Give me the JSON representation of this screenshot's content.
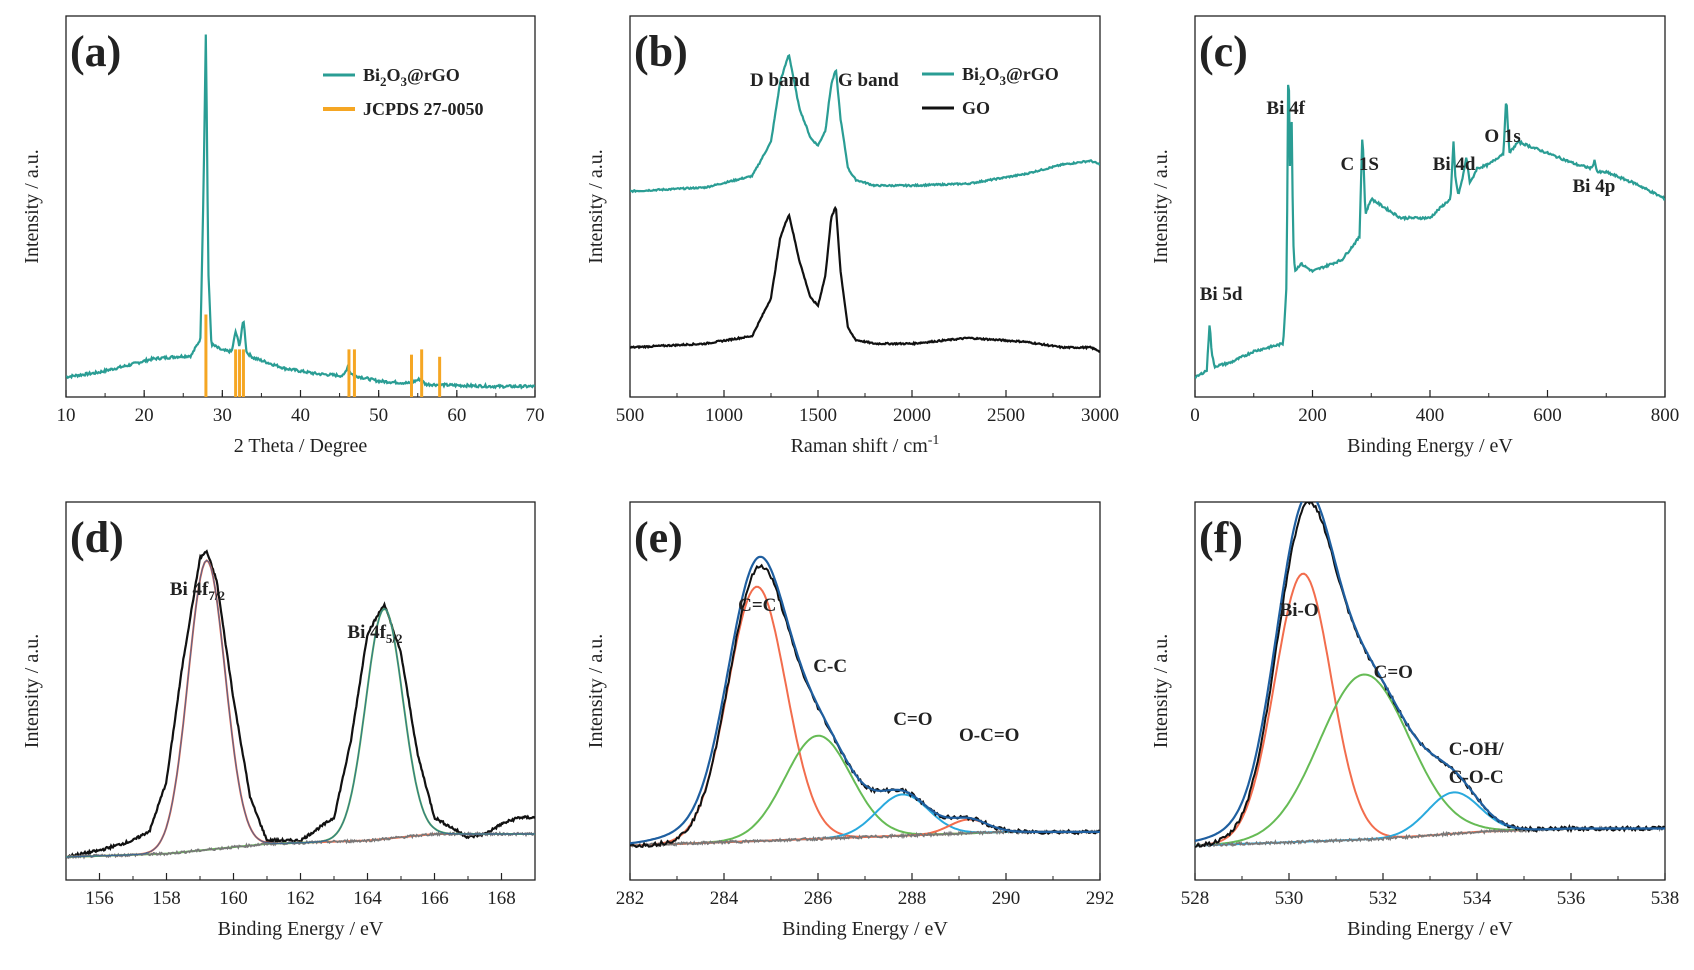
{
  "figure": "six-panel characterization figure",
  "colors": {
    "teal": "#2a9d94",
    "black": "#111111",
    "orange": "#f5a623",
    "red_fit": "#f26d4d",
    "green_fit": "#66bb55",
    "cyan_fit": "#29a9dd",
    "envelope": "#1f5fa0",
    "background_line": "#777777"
  },
  "chart_data": [
    {
      "id": "a",
      "panel_label": "(a)",
      "type": "line",
      "xlabel": "2 Theta / Degree",
      "ylabel": "Intensity / a.u.",
      "xlim": [
        10,
        70
      ],
      "xticks": [
        "10",
        "20",
        "30",
        "40",
        "50",
        "60",
        "70"
      ],
      "legend": [
        {
          "label": "Bi2O3@rGO",
          "color": "#2a9d94",
          "kind": "line"
        },
        {
          "label": "JCPDS 27-0050",
          "color": "#f5a623",
          "kind": "bar"
        }
      ],
      "series": [
        {
          "name": "Bi2O3@rGO",
          "color": "#2a9d94",
          "x": [
            10,
            14,
            18,
            21,
            24,
            26,
            27.2,
            27.6,
            27.9,
            28.2,
            28.6,
            30,
            31.2,
            31.7,
            32.2,
            32.7,
            33.1,
            34,
            38,
            42,
            45.5,
            46,
            46.5,
            47,
            50,
            54,
            55.3,
            56,
            60,
            65,
            70
          ],
          "y": [
            0.19,
            0.23,
            0.3,
            0.36,
            0.38,
            0.39,
            0.55,
            2.0,
            3.5,
            1.2,
            0.5,
            0.44,
            0.43,
            0.62,
            0.48,
            0.74,
            0.42,
            0.37,
            0.27,
            0.22,
            0.2,
            0.28,
            0.22,
            0.2,
            0.15,
            0.13,
            0.17,
            0.12,
            0.11,
            0.1,
            0.1
          ]
        },
        {
          "name": "JCPDS 27-0050",
          "color": "#f5a623",
          "type": "stick",
          "x": [
            27.9,
            31.7,
            32.2,
            32.7,
            46.2,
            46.9,
            54.2,
            55.5,
            57.8
          ],
          "y": [
            0.78,
            0.45,
            0.45,
            0.45,
            0.45,
            0.45,
            0.4,
            0.45,
            0.38
          ]
        }
      ]
    },
    {
      "id": "b",
      "panel_label": "(b)",
      "type": "line",
      "xlabel": "Raman shift / cm-1",
      "ylabel": "Intensity / a.u.",
      "xlim": [
        500,
        3000
      ],
      "xticks": [
        "500",
        "1000",
        "1500",
        "2000",
        "2500",
        "3000"
      ],
      "annotations": [
        "D band",
        "G band"
      ],
      "legend": [
        {
          "label": "Bi2O3@rGO",
          "color": "#2a9d94",
          "kind": "line"
        },
        {
          "label": "GO",
          "color": "#111111",
          "kind": "line"
        }
      ],
      "series": [
        {
          "name": "Bi2O3@rGO",
          "color": "#2a9d94",
          "x": [
            500,
            900,
            1150,
            1250,
            1300,
            1345,
            1400,
            1460,
            1500,
            1540,
            1570,
            1595,
            1620,
            1660,
            1700,
            1800,
            2000,
            2300,
            2600,
            2800,
            2950,
            3000
          ],
          "y": [
            0.54,
            0.55,
            0.58,
            0.67,
            0.83,
            0.9,
            0.76,
            0.68,
            0.66,
            0.7,
            0.82,
            0.86,
            0.73,
            0.6,
            0.57,
            0.555,
            0.555,
            0.56,
            0.585,
            0.61,
            0.62,
            0.61
          ]
        },
        {
          "name": "GO",
          "color": "#111111",
          "x": [
            500,
            900,
            1150,
            1250,
            1300,
            1345,
            1400,
            1460,
            1500,
            1540,
            1570,
            1595,
            1620,
            1660,
            1700,
            1800,
            2000,
            2300,
            2600,
            2800,
            2950,
            3000
          ],
          "y": [
            0.13,
            0.14,
            0.16,
            0.26,
            0.42,
            0.48,
            0.36,
            0.26,
            0.24,
            0.32,
            0.47,
            0.5,
            0.33,
            0.18,
            0.15,
            0.14,
            0.14,
            0.155,
            0.145,
            0.13,
            0.13,
            0.12
          ]
        }
      ]
    },
    {
      "id": "c",
      "panel_label": "(c)",
      "type": "line",
      "xlabel": "Binding Energy / eV",
      "ylabel": "Intensity / a.u.",
      "xlim": [
        0,
        800
      ],
      "xticks": [
        "0",
        "200",
        "400",
        "600",
        "800"
      ],
      "annotations": [
        {
          "text": "Bi 5d",
          "x": 25
        },
        {
          "text": "Bi 4f",
          "x": 159
        },
        {
          "text": "C 1S",
          "x": 285
        },
        {
          "text": "Bi 4d",
          "x": 442
        },
        {
          "text": "O 1s",
          "x": 530
        },
        {
          "text": "Bi 4p",
          "x": 680
        }
      ],
      "series": [
        {
          "name": "survey",
          "color": "#2a9d94",
          "x": [
            0,
            20,
            25,
            28,
            33,
            60,
            100,
            150,
            156,
            159,
            162,
            164,
            167,
            170,
            180,
            200,
            250,
            280,
            285,
            290,
            300,
            350,
            400,
            420,
            435,
            440,
            443,
            448,
            455,
            462,
            468,
            480,
            500,
            525,
            530,
            535,
            550,
            600,
            650,
            675,
            680,
            685,
            700,
            750,
            800
          ],
          "y": [
            0.05,
            0.07,
            0.2,
            0.12,
            0.08,
            0.09,
            0.12,
            0.14,
            0.3,
            0.93,
            0.55,
            0.8,
            0.42,
            0.33,
            0.35,
            0.33,
            0.36,
            0.42,
            0.7,
            0.48,
            0.52,
            0.47,
            0.47,
            0.5,
            0.52,
            0.67,
            0.58,
            0.53,
            0.57,
            0.63,
            0.56,
            0.6,
            0.61,
            0.64,
            0.79,
            0.64,
            0.67,
            0.64,
            0.61,
            0.6,
            0.62,
            0.59,
            0.59,
            0.56,
            0.52
          ]
        }
      ]
    },
    {
      "id": "d",
      "panel_label": "(d)",
      "type": "line",
      "xlabel": "Binding Energy / eV",
      "ylabel": "Intensity / a.u.",
      "xlim": [
        155,
        169
      ],
      "xticks": [
        "156",
        "158",
        "160",
        "162",
        "164",
        "166",
        "168"
      ],
      "annotations": [
        "Bi 4f7/2",
        "Bi 4f5/2"
      ],
      "series": [
        {
          "name": "data",
          "color": "#111111",
          "x": [
            155,
            156,
            157,
            157.5,
            158,
            158.5,
            159,
            159.2,
            159.5,
            160,
            160.5,
            161,
            162,
            163,
            163.5,
            164,
            164.5,
            165,
            165.5,
            166,
            167,
            167.5,
            168,
            168.5,
            169
          ],
          "y": [
            0.02,
            0.04,
            0.07,
            0.1,
            0.25,
            0.62,
            0.93,
            0.95,
            0.86,
            0.5,
            0.2,
            0.07,
            0.07,
            0.14,
            0.37,
            0.7,
            0.79,
            0.64,
            0.33,
            0.14,
            0.08,
            0.09,
            0.12,
            0.14,
            0.14
          ]
        },
        {
          "name": "Bi 4f7/2 fit",
          "color": "#f26d4d",
          "fit": {
            "center": 159.2,
            "sigma": 0.55,
            "height": 0.88
          }
        },
        {
          "name": "Bi 4f5/2 fit",
          "color": "#66bb55",
          "fit": {
            "center": 164.5,
            "sigma": 0.55,
            "height": 0.7
          }
        },
        {
          "name": "background",
          "color": "#777777",
          "x": [
            155,
            158,
            161,
            164,
            166,
            169
          ],
          "y": [
            0.02,
            0.03,
            0.06,
            0.07,
            0.09,
            0.09
          ]
        }
      ]
    },
    {
      "id": "e",
      "panel_label": "(e)",
      "type": "line",
      "xlabel": "Binding Energy / eV",
      "ylabel": "Intensity / a.u.",
      "xlim": [
        282,
        292
      ],
      "xticks": [
        "282",
        "284",
        "286",
        "288",
        "290",
        "292"
      ],
      "annotations": [
        "C=C",
        "C-C",
        "C=O",
        "O-C=O"
      ],
      "series": [
        {
          "name": "C=C fit",
          "color": "#f26d4d",
          "fit": {
            "center": 284.7,
            "sigma": 0.62,
            "height": 0.74
          }
        },
        {
          "name": "C-C fit",
          "color": "#66bb55",
          "fit": {
            "center": 286.0,
            "sigma": 0.7,
            "height": 0.3
          }
        },
        {
          "name": "C=O fit",
          "color": "#29a9dd",
          "fit": {
            "center": 287.8,
            "sigma": 0.55,
            "height": 0.12
          }
        },
        {
          "name": "O-C=O fit",
          "color": "#f26d4d",
          "fit": {
            "center": 289.2,
            "sigma": 0.4,
            "height": 0.04
          }
        },
        {
          "name": "background",
          "color": "#777777",
          "x": [
            282,
            284,
            286,
            288,
            290,
            292
          ],
          "y": [
            0.0,
            0.01,
            0.02,
            0.03,
            0.04,
            0.04
          ]
        }
      ]
    },
    {
      "id": "f",
      "panel_label": "(f)",
      "type": "line",
      "xlabel": "Binding Energy / eV",
      "ylabel": "Intensity / a.u.",
      "xlim": [
        528,
        538
      ],
      "xticks": [
        "528",
        "530",
        "532",
        "534",
        "536",
        "538"
      ],
      "annotations": [
        "Bi-O",
        "C=O",
        "C-OH/",
        "C-O-C"
      ],
      "series": [
        {
          "name": "Bi-O fit",
          "color": "#f26d4d",
          "fit": {
            "center": 530.3,
            "sigma": 0.6,
            "height": 0.78
          }
        },
        {
          "name": "C=O fit",
          "color": "#66bb55",
          "fit": {
            "center": 531.6,
            "sigma": 0.95,
            "height": 0.48
          }
        },
        {
          "name": "C-OH/C-O-C fit",
          "color": "#29a9dd",
          "fit": {
            "center": 533.5,
            "sigma": 0.55,
            "height": 0.12
          }
        },
        {
          "name": "background",
          "color": "#777777",
          "x": [
            528,
            530,
            532,
            534,
            536,
            538
          ],
          "y": [
            0.0,
            0.01,
            0.02,
            0.04,
            0.05,
            0.05
          ]
        }
      ]
    }
  ]
}
